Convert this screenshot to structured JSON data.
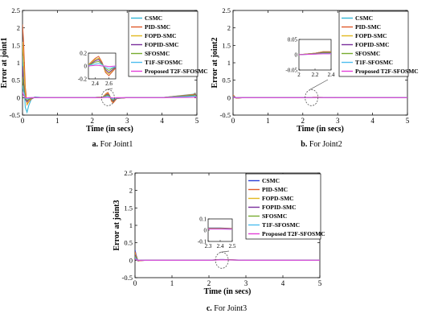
{
  "figure": {
    "panels_count": 3
  },
  "chart_data": [
    {
      "type": "line",
      "panel_caption": "a. For Joint1",
      "xlabel": "Time (in secs)",
      "ylabel": "Error at joint1",
      "xlim": [
        0,
        5
      ],
      "ylim": [
        -0.5,
        2.5
      ],
      "xticks": [
        0,
        1,
        2,
        3,
        4,
        5
      ],
      "yticks": [
        -0.5,
        0,
        0.5,
        1,
        1.5,
        2,
        2.5
      ],
      "legend": {
        "placement": "top-right"
      },
      "grid": false,
      "series": [
        {
          "name": "CSMC",
          "color": "#35b6d6",
          "x": [
            0,
            0.03,
            0.08,
            0.13,
            0.18,
            0.25,
            0.35,
            0.5,
            1,
            2,
            2.3,
            2.4,
            2.45,
            2.5,
            2.55,
            2.6,
            2.7,
            3,
            4,
            4.9,
            4.95,
            5
          ],
          "y": [
            1.2,
            0.55,
            -0.28,
            -0.42,
            -0.22,
            -0.05,
            0.02,
            0.01,
            0,
            0,
            0.02,
            0.1,
            0.12,
            0.05,
            -0.08,
            -0.12,
            -0.02,
            0,
            0,
            0.1,
            0.13,
            0
          ]
        },
        {
          "name": "PID-SMC",
          "color": "#e05a2b",
          "x": [
            0,
            0.03,
            0.08,
            0.13,
            0.18,
            0.25,
            0.35,
            0.5,
            1,
            2,
            2.3,
            2.4,
            2.45,
            2.5,
            2.55,
            2.6,
            2.7,
            3,
            4,
            4.9,
            4.95,
            5
          ],
          "y": [
            2.1,
            1.6,
            0.3,
            -0.2,
            -0.12,
            -0.04,
            0.01,
            0,
            0,
            0,
            0.02,
            0.12,
            0.15,
            0.06,
            -0.1,
            -0.15,
            -0.03,
            0,
            0,
            0.09,
            0.12,
            0
          ]
        },
        {
          "name": "FOPD-SMC",
          "color": "#e2b81f",
          "x": [
            0,
            0.03,
            0.08,
            0.13,
            0.18,
            0.25,
            0.35,
            0.5,
            1,
            2,
            2.3,
            2.4,
            2.45,
            2.5,
            2.55,
            2.6,
            2.7,
            3,
            4,
            4.9,
            4.95,
            5
          ],
          "y": [
            1.6,
            1.0,
            0.1,
            -0.18,
            -0.1,
            -0.03,
            0.01,
            0,
            0,
            0,
            0.02,
            0.1,
            0.12,
            0.05,
            -0.08,
            -0.12,
            -0.02,
            0,
            0,
            0.08,
            0.11,
            0
          ]
        },
        {
          "name": "FOPID-SMC",
          "color": "#7a2f9c",
          "x": [
            0,
            0.03,
            0.08,
            0.13,
            0.18,
            0.25,
            0.35,
            0.5,
            1,
            2,
            2.3,
            2.4,
            2.45,
            2.5,
            2.55,
            2.6,
            2.7,
            3,
            4,
            4.9,
            4.95,
            5
          ],
          "y": [
            0.9,
            0.45,
            -0.05,
            -0.12,
            -0.06,
            -0.02,
            0,
            0,
            0,
            0,
            0.01,
            0.08,
            0.1,
            0.04,
            -0.06,
            -0.1,
            -0.02,
            0,
            0,
            0.07,
            0.1,
            0
          ]
        },
        {
          "name": "SFOSMC",
          "color": "#77ac30",
          "x": [
            0,
            0.03,
            0.08,
            0.13,
            0.18,
            0.25,
            0.35,
            0.5,
            1,
            2,
            2.3,
            2.4,
            2.45,
            2.5,
            2.55,
            2.6,
            2.7,
            3,
            4,
            4.9,
            4.95,
            5
          ],
          "y": [
            0.6,
            0.3,
            -0.03,
            -0.08,
            -0.04,
            -0.01,
            0,
            0,
            0,
            0,
            0.01,
            0.06,
            0.07,
            0.03,
            -0.04,
            -0.07,
            -0.01,
            0,
            0,
            0.06,
            0.08,
            0
          ]
        },
        {
          "name": "T1F-SFOSMC",
          "color": "#4dbeee",
          "x": [
            0,
            0.03,
            0.08,
            0.13,
            0.18,
            0.25,
            0.35,
            0.5,
            1,
            2,
            2.3,
            2.4,
            2.45,
            2.5,
            2.55,
            2.6,
            2.7,
            3,
            4,
            4.9,
            4.95,
            5
          ],
          "y": [
            0.35,
            0.18,
            -0.01,
            -0.04,
            -0.02,
            0,
            0,
            0,
            0,
            0,
            0.01,
            0.03,
            0.04,
            0.02,
            -0.02,
            -0.04,
            -0.01,
            0,
            0,
            0.04,
            0.05,
            0
          ]
        },
        {
          "name": "Proposed T2F-SFOSMC",
          "color": "#e43fd8",
          "x": [
            0,
            0.03,
            0.08,
            0.13,
            0.18,
            0.25,
            0.35,
            0.5,
            1,
            2,
            2.3,
            2.4,
            2.45,
            2.5,
            2.55,
            2.6,
            2.7,
            3,
            4,
            4.9,
            4.95,
            5
          ],
          "y": [
            0.15,
            0.07,
            0,
            -0.01,
            0,
            0,
            0,
            0,
            0,
            0,
            0,
            0.01,
            0.01,
            0,
            0,
            -0.01,
            0,
            0,
            0,
            0.01,
            0.02,
            0
          ]
        }
      ],
      "zoom_inset": {
        "xlim": [
          2.3,
          2.7
        ],
        "ylim": [
          -0.2,
          0.2
        ],
        "xticks": [
          "2.4",
          "2.6"
        ],
        "yticks": [
          "0.2",
          "0",
          "-0.2"
        ],
        "focus": {
          "x": 2.45,
          "y": 0
        }
      }
    },
    {
      "type": "line",
      "panel_caption": "b. For Joint2",
      "xlabel": "Time (in secs)",
      "ylabel": "Error at joint2",
      "xlim": [
        0,
        5
      ],
      "ylim": [
        -0.5,
        2.5
      ],
      "xticks": [
        0,
        1,
        2,
        3,
        4,
        5
      ],
      "yticks": [
        -0.5,
        0,
        0.5,
        1,
        1.5,
        2,
        2.5
      ],
      "legend": {
        "placement": "top-right"
      },
      "grid": false,
      "series": [
        {
          "name": "CSMC",
          "color": "#35b6d6",
          "x": [
            0,
            0.03,
            0.08,
            0.15,
            0.3,
            1,
            2,
            2.2,
            2.3,
            2.4,
            3,
            4,
            5
          ],
          "y": [
            0.06,
            0.04,
            -0.01,
            -0.01,
            0,
            0,
            0,
            0.005,
            0.01,
            0.01,
            0,
            0,
            0
          ]
        },
        {
          "name": "PID-SMC",
          "color": "#e05a2b",
          "x": [
            0,
            0.03,
            0.08,
            0.15,
            0.3,
            1,
            2,
            2.2,
            2.3,
            2.4,
            3,
            4,
            5
          ],
          "y": [
            0.07,
            0.05,
            -0.01,
            -0.01,
            0,
            0,
            0,
            0.005,
            0.01,
            0.01,
            0,
            0,
            0
          ]
        },
        {
          "name": "FOPD-SMC",
          "color": "#e2b81f",
          "x": [
            0,
            0.03,
            0.08,
            0.15,
            0.3,
            1,
            2,
            2.2,
            2.3,
            2.4,
            3,
            4,
            5
          ],
          "y": [
            0.05,
            0.035,
            -0.01,
            -0.005,
            0,
            0,
            0,
            0.005,
            0.01,
            0.01,
            0,
            0,
            0
          ]
        },
        {
          "name": "FOPID-SMC",
          "color": "#7a2f9c",
          "x": [
            0,
            0.03,
            0.08,
            0.15,
            0.3,
            1,
            2,
            2.2,
            2.3,
            2.4,
            3,
            4,
            5
          ],
          "y": [
            0.04,
            0.03,
            -0.005,
            -0.005,
            0,
            0,
            0,
            0.004,
            0.008,
            0.008,
            0,
            0,
            0
          ]
        },
        {
          "name": "SFOSMC",
          "color": "#77ac30",
          "x": [
            0,
            0.03,
            0.08,
            0.15,
            0.3,
            1,
            2,
            2.2,
            2.3,
            2.4,
            3,
            4,
            5
          ],
          "y": [
            0.03,
            0.02,
            -0.005,
            0,
            0,
            0,
            0,
            0.003,
            0.006,
            0.006,
            0,
            0,
            0
          ]
        },
        {
          "name": "T1F-SFOSMC",
          "color": "#4dbeee",
          "x": [
            0,
            0.03,
            0.08,
            0.15,
            0.3,
            1,
            2,
            2.2,
            2.3,
            2.4,
            3,
            4,
            5
          ],
          "y": [
            0.02,
            0.015,
            0,
            0,
            0,
            0,
            0,
            0.002,
            0.004,
            0.004,
            0,
            0,
            0
          ]
        },
        {
          "name": "Proposed T2F-SFOSMC",
          "color": "#e43fd8",
          "x": [
            0,
            0.03,
            0.08,
            0.15,
            0.3,
            1,
            2,
            2.2,
            2.3,
            2.4,
            3,
            4,
            5
          ],
          "y": [
            0.01,
            0.005,
            0,
            0,
            0,
            0,
            0,
            0.002,
            0.003,
            0.003,
            0,
            0,
            0
          ]
        }
      ],
      "zoom_inset": {
        "xlim": [
          2,
          2.4
        ],
        "ylim": [
          -0.05,
          0.05
        ],
        "xticks": [
          "2",
          "2.2",
          "2.4"
        ],
        "yticks": [
          "0.05",
          "0",
          "-0.05"
        ],
        "focus": {
          "x": 2.25,
          "y": 0
        }
      }
    },
    {
      "type": "line",
      "panel_caption": "c. For Joint3",
      "xlabel": "Time (in secs)",
      "ylabel": "Error at joint3",
      "xlim": [
        0,
        5
      ],
      "ylim": [
        -0.5,
        2.5
      ],
      "xticks": [
        0,
        1,
        2,
        3,
        4,
        5
      ],
      "yticks": [
        -0.5,
        0,
        0.5,
        1,
        1.5,
        2,
        2.5
      ],
      "legend": {
        "placement": "top-right"
      },
      "grid": false,
      "series": [
        {
          "name": "CSMC",
          "color": "#2b3fd6",
          "x": [
            0,
            0.03,
            0.08,
            0.15,
            0.3,
            1,
            2,
            2.3,
            2.4,
            2.5,
            3,
            4,
            5
          ],
          "y": [
            0.3,
            0.15,
            -0.02,
            -0.01,
            0,
            0,
            0,
            0.02,
            0.02,
            0.015,
            0,
            0,
            0
          ]
        },
        {
          "name": "PID-SMC",
          "color": "#e05a2b",
          "x": [
            0,
            0.03,
            0.08,
            0.15,
            0.3,
            1,
            2,
            2.3,
            2.4,
            2.5,
            3,
            4,
            5
          ],
          "y": [
            0.25,
            0.12,
            -0.02,
            -0.01,
            0,
            0,
            0,
            0.018,
            0.018,
            0.014,
            0,
            0,
            0
          ]
        },
        {
          "name": "FOPD-SMC",
          "color": "#e2b81f",
          "x": [
            0,
            0.03,
            0.08,
            0.15,
            0.3,
            1,
            2,
            2.3,
            2.4,
            2.5,
            3,
            4,
            5
          ],
          "y": [
            0.2,
            0.1,
            -0.01,
            -0.005,
            0,
            0,
            0,
            0.016,
            0.016,
            0.012,
            0,
            0,
            0
          ]
        },
        {
          "name": "FOPID-SMC",
          "color": "#7a2f9c",
          "x": [
            0,
            0.03,
            0.08,
            0.15,
            0.3,
            1,
            2,
            2.3,
            2.4,
            2.5,
            3,
            4,
            5
          ],
          "y": [
            0.16,
            0.08,
            -0.01,
            0,
            0,
            0,
            0,
            0.015,
            0.015,
            0.011,
            0,
            0,
            0
          ]
        },
        {
          "name": "SFOSMC",
          "color": "#77ac30",
          "x": [
            0,
            0.03,
            0.08,
            0.15,
            0.3,
            1,
            2,
            2.3,
            2.4,
            2.5,
            3,
            4,
            5
          ],
          "y": [
            0.12,
            0.06,
            0,
            0,
            0,
            0,
            0,
            0.013,
            0.013,
            0.01,
            0,
            0,
            0
          ]
        },
        {
          "name": "T1F-SFOSMC",
          "color": "#4dbeee",
          "x": [
            0,
            0.03,
            0.08,
            0.15,
            0.3,
            1,
            2,
            2.3,
            2.4,
            2.5,
            3,
            4,
            5
          ],
          "y": [
            0.08,
            0.04,
            0,
            0,
            0,
            0,
            0,
            0.012,
            0.012,
            0.009,
            0,
            0,
            0
          ]
        },
        {
          "name": "Proposed T2F-SFOSMC",
          "color": "#e43fd8",
          "x": [
            0,
            0.03,
            0.08,
            0.15,
            0.3,
            1,
            2,
            2.3,
            2.4,
            2.5,
            3,
            4,
            5
          ],
          "y": [
            0.04,
            0.02,
            0,
            0,
            0,
            0,
            0,
            0.01,
            0.01,
            0.008,
            0,
            0,
            0
          ]
        }
      ],
      "zoom_inset": {
        "xlim": [
          2.3,
          2.5
        ],
        "ylim": [
          -0.1,
          0.1
        ],
        "xticks": [
          "2.3",
          "2.4",
          "2.5"
        ],
        "yticks": [
          "0.1",
          "0",
          "-0.1"
        ],
        "focus": {
          "x": 2.35,
          "y": 0
        }
      }
    }
  ]
}
